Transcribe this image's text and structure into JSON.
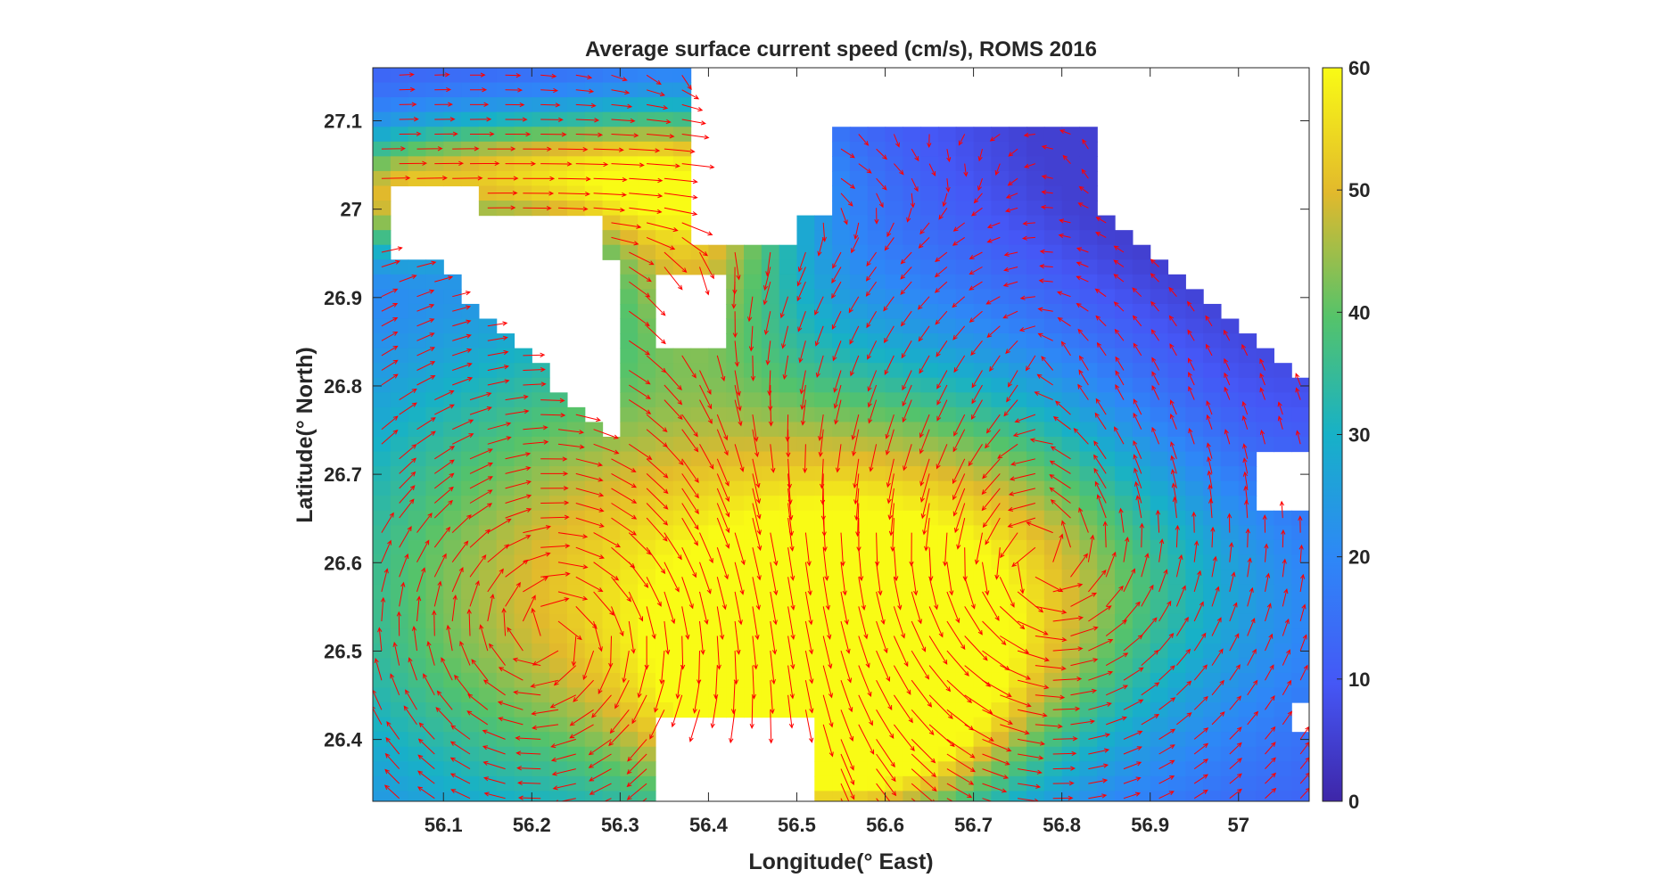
{
  "chart_data": {
    "type": "heatmap",
    "overlay": "quiver",
    "title": "Average surface current speed (cm/s), ROMS 2016",
    "xlabel": "Longitude(° East)",
    "ylabel": "Latitude(° North)",
    "xlim": [
      56.02,
      57.08
    ],
    "ylim": [
      26.33,
      27.16
    ],
    "xticks": [
      56.1,
      56.2,
      56.3,
      56.4,
      56.5,
      56.6,
      56.7,
      56.8,
      56.9,
      57
    ],
    "yticks": [
      26.4,
      26.5,
      26.6,
      26.7,
      26.8,
      26.9,
      27,
      27.1
    ],
    "xtick_labels": [
      "56.1",
      "56.2",
      "56.3",
      "56.4",
      "56.5",
      "56.6",
      "56.7",
      "56.8",
      "56.9",
      "57"
    ],
    "ytick_labels": [
      "26.4",
      "26.5",
      "26.6",
      "26.7",
      "26.8",
      "26.9",
      "27",
      "27.1"
    ],
    "colorbar": {
      "label_values": [
        0,
        10,
        20,
        30,
        40,
        50,
        60
      ],
      "labels": [
        "0",
        "10",
        "20",
        "30",
        "40",
        "50",
        "60"
      ],
      "range": [
        0,
        60
      ],
      "colormap": "parula",
      "location": "right"
    },
    "arrow_color": "#ff0000",
    "grid": false,
    "speed_field": {
      "units": "cm/s",
      "min": 5,
      "max": 60,
      "features": [
        {
          "feature": "jet core",
          "lon": 56.55,
          "lat": 26.44,
          "speed": 60
        },
        {
          "feature": "strait jet",
          "lon": 56.1,
          "lat": 27.04,
          "speed": 52
        },
        {
          "feature": "western eddy",
          "lon": 56.22,
          "lat": 26.52,
          "speed": 40
        },
        {
          "feature": "eastern eddy",
          "lon": 56.76,
          "lat": 26.59,
          "speed": 33
        },
        {
          "feature": "northern gulf",
          "lon": 56.9,
          "lat": 27.05,
          "speed": 8
        }
      ]
    }
  }
}
